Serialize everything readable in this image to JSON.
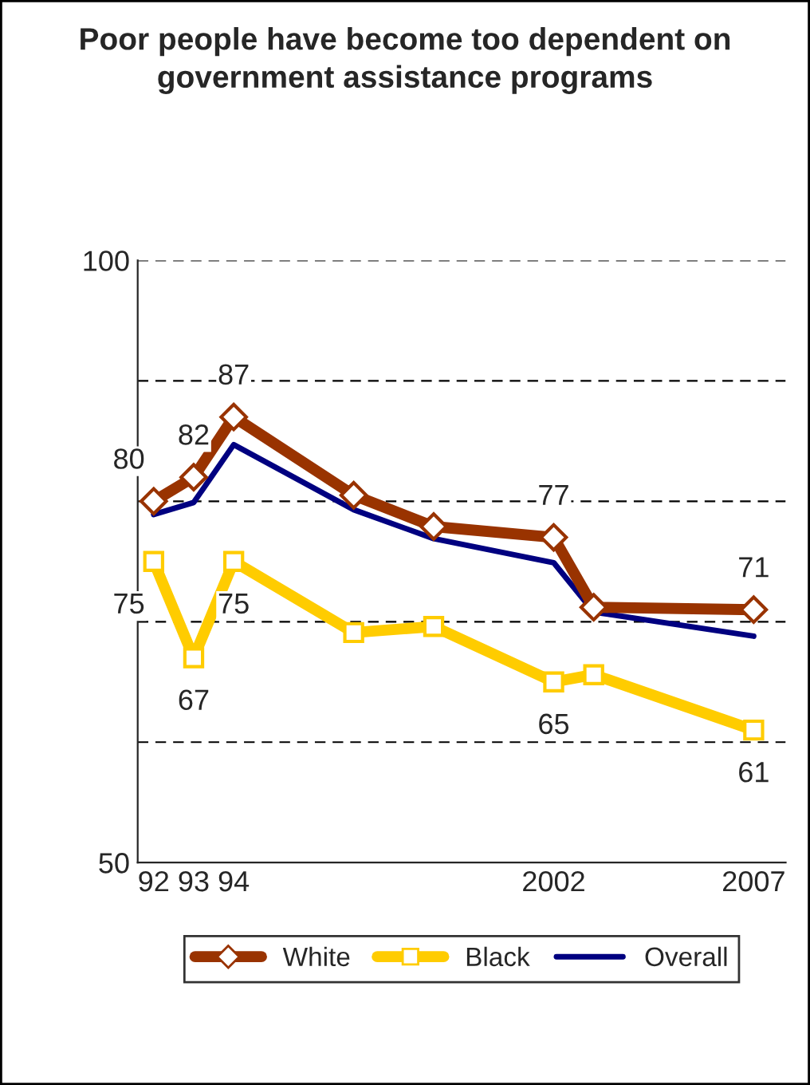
{
  "chart_data": {
    "type": "line",
    "title": "Poor people have become too dependent on government assistance programs",
    "x": [
      1992,
      1993,
      1994,
      1997,
      1999,
      2002,
      2003,
      2007
    ],
    "series": [
      {
        "name": "White",
        "color": "#993300",
        "marker": "diamond",
        "values": [
          80,
          82,
          87,
          80.5,
          77.9,
          77,
          71.2,
          71
        ],
        "value_labels": [
          "80",
          "82",
          "87",
          null,
          null,
          "77",
          null,
          "71"
        ]
      },
      {
        "name": "Black",
        "color": "#ffcc00",
        "marker": "square",
        "values": [
          75,
          67,
          75,
          69.1,
          69.6,
          65,
          65.6,
          61
        ],
        "value_labels": [
          "75",
          "67",
          "75",
          null,
          null,
          "65",
          null,
          "61"
        ]
      },
      {
        "name": "Overall",
        "color": "#000080",
        "marker": "none",
        "values": [
          78.9,
          79.9,
          84.7,
          79.3,
          76.9,
          74.9,
          70.8,
          68.8
        ]
      }
    ],
    "xlim": [
      1991.6,
      2007.8
    ],
    "xticks": [
      {
        "value": 1992,
        "label": "92"
      },
      {
        "value": 1993,
        "label": "93"
      },
      {
        "value": 1994,
        "label": "94"
      },
      {
        "value": 2002,
        "label": "2002"
      },
      {
        "value": 2007,
        "label": "2007"
      }
    ],
    "ylim": [
      50,
      100
    ],
    "yticks": [
      50,
      {
        "value": 60,
        "label": null
      },
      {
        "value": 70,
        "label": null
      },
      {
        "value": 80,
        "label": null
      },
      {
        "value": 90,
        "label": null
      },
      100
    ],
    "grid": "y",
    "legend": "bottom"
  }
}
